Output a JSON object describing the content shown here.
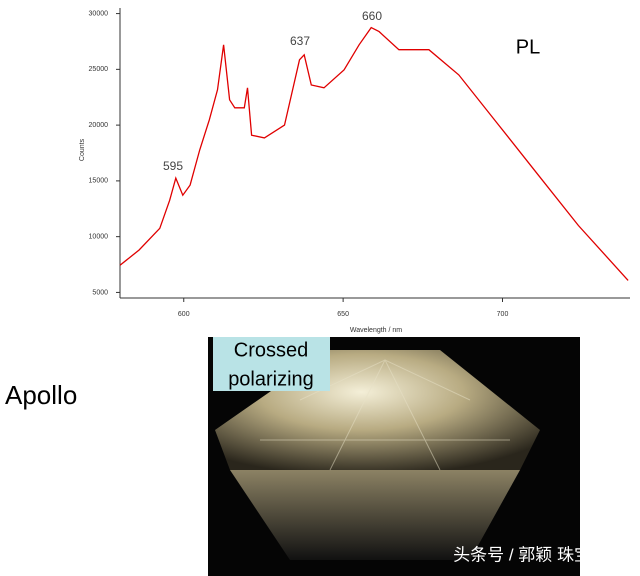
{
  "chart_data": {
    "type": "line",
    "x_label": "Wavelength / nm",
    "y_label": "Counts",
    "annotations": [
      "595",
      "637",
      "660",
      "PL"
    ],
    "x": [
      580,
      586,
      592.5,
      595.6,
      597.5,
      599.7,
      602,
      605,
      608,
      610.6,
      612.5,
      614.4,
      616,
      619,
      620,
      621.3,
      625.3,
      631.6,
      636.3,
      637.8,
      640,
      644,
      650.3,
      655,
      658.8,
      661.3,
      667.5,
      676.9,
      686.3,
      698.8,
      711.3,
      723.8,
      739.4
    ],
    "series": [
      {
        "name": "PL",
        "color": "#e00000",
        "values": [
          7430,
          8800,
          10750,
          13270,
          15250,
          13720,
          14620,
          17770,
          20470,
          23170,
          27200,
          22270,
          21550,
          21550,
          23350,
          19100,
          18850,
          20000,
          25860,
          26300,
          23600,
          23350,
          24960,
          27200,
          28740,
          28380,
          26760,
          26760,
          24500,
          20000,
          15500,
          11000,
          6080
        ]
      }
    ],
    "xlim": [
      580,
      740
    ],
    "xticks": [
      600,
      650,
      700
    ],
    "ylim": [
      4500,
      30500
    ],
    "yticks": [
      5000,
      10000,
      15000,
      20000,
      25000,
      30000
    ]
  },
  "labels": {
    "sample": "Apollo",
    "photo_caption": [
      "Crossed",
      "polarizing"
    ],
    "watermark": "头条号 / 郭颖 珠宝学者"
  }
}
